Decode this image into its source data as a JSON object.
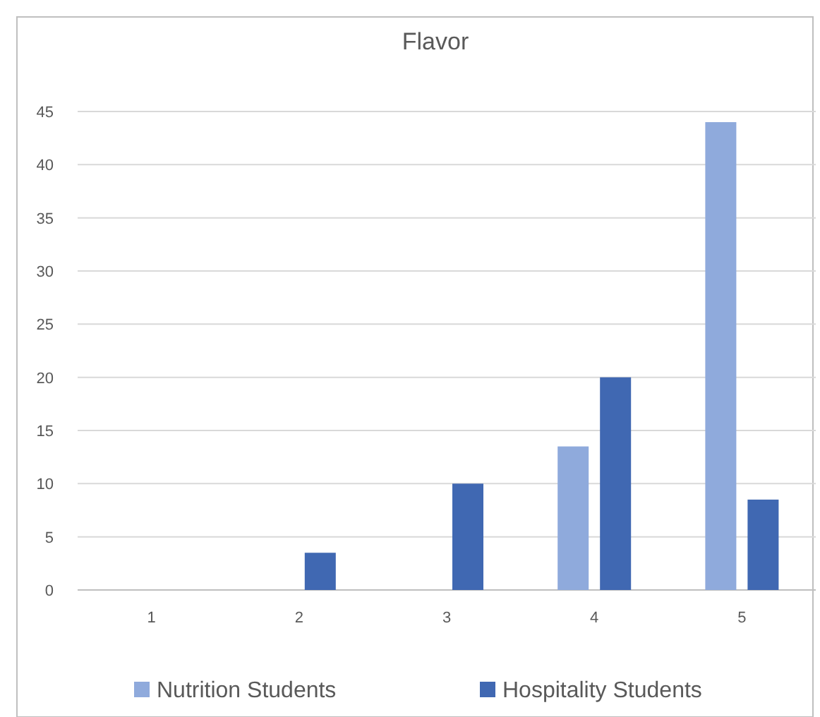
{
  "chart_data": {
    "type": "bar",
    "title": "Flavor",
    "categories": [
      "1",
      "2",
      "3",
      "4",
      "5"
    ],
    "series": [
      {
        "name": "Nutrition Students",
        "color": "#8faadc",
        "values": [
          0,
          0,
          0,
          13.5,
          44
        ]
      },
      {
        "name": "Hospitality Students",
        "color": "#4068b2",
        "values": [
          0,
          3.5,
          10,
          20,
          8.5
        ]
      }
    ],
    "ylim": [
      0,
      45
    ],
    "yticks": [
      0,
      5,
      10,
      15,
      20,
      25,
      30,
      35,
      40,
      45
    ],
    "grid": "y",
    "legend": "bottom"
  }
}
